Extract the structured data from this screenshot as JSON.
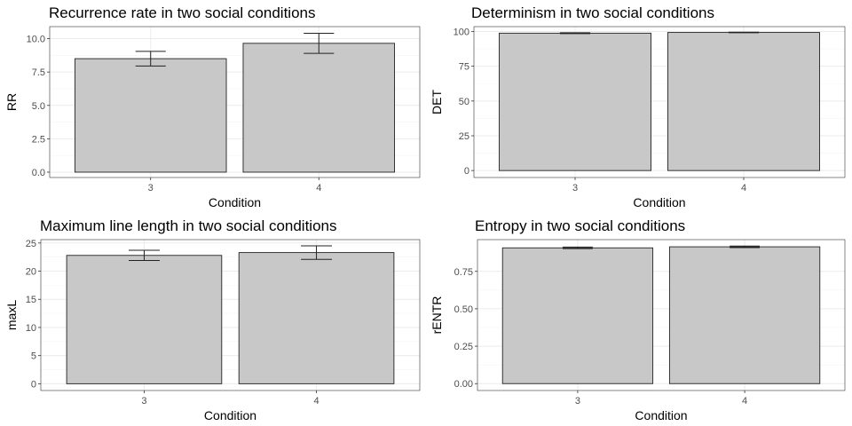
{
  "chart_data": [
    {
      "type": "bar",
      "title": "Recurrence rate in two social conditions",
      "xlabel": "Condition",
      "ylabel": "RR",
      "categories": [
        "3",
        "4"
      ],
      "values": [
        8.5,
        9.65
      ],
      "error_low": [
        7.95,
        8.9
      ],
      "error_high": [
        9.05,
        10.4
      ],
      "ylim": [
        -0.4,
        10.9
      ],
      "yticks": [
        0,
        2.5,
        5,
        7.5,
        10
      ],
      "ytick_labels": [
        "0.0",
        "2.5",
        "5.0",
        "7.5",
        "10.0"
      ],
      "grid": true,
      "bar_color": "#c8c8c8"
    },
    {
      "type": "bar",
      "title": "Determinism in two social conditions",
      "xlabel": "Condition",
      "ylabel": "DET",
      "categories": [
        "3",
        "4"
      ],
      "values": [
        98.8,
        99.3
      ],
      "error_low": [
        98.5,
        99.1
      ],
      "error_high": [
        99.1,
        99.5
      ],
      "ylim": [
        -5,
        103.5
      ],
      "yticks": [
        0,
        25,
        50,
        75,
        100
      ],
      "ytick_labels": [
        "0",
        "25",
        "50",
        "75",
        "100"
      ],
      "grid": true,
      "bar_color": "#c8c8c8"
    },
    {
      "type": "bar",
      "title": "Maximum line length in two social conditions",
      "xlabel": "Condition",
      "ylabel": "maxL",
      "categories": [
        "3",
        "4"
      ],
      "values": [
        22.8,
        23.3
      ],
      "error_low": [
        21.9,
        22.1
      ],
      "error_high": [
        23.7,
        24.5
      ],
      "ylim": [
        -1.2,
        25.6
      ],
      "yticks": [
        0,
        5,
        10,
        15,
        20,
        25
      ],
      "ytick_labels": [
        "0",
        "5",
        "10",
        "15",
        "20",
        "25"
      ],
      "grid": true,
      "bar_color": "#c8c8c8"
    },
    {
      "type": "bar",
      "title": "Entropy in two social conditions",
      "xlabel": "Condition",
      "ylabel": "rENTR",
      "categories": [
        "3",
        "4"
      ],
      "values": [
        0.907,
        0.914
      ],
      "error_low": [
        0.902,
        0.909
      ],
      "error_high": [
        0.912,
        0.919
      ],
      "ylim": [
        -0.046,
        0.962
      ],
      "yticks": [
        0,
        0.25,
        0.5,
        0.75
      ],
      "ytick_labels": [
        "0.00",
        "0.25",
        "0.50",
        "0.75"
      ],
      "grid": true,
      "bar_color": "#c8c8c8"
    }
  ]
}
